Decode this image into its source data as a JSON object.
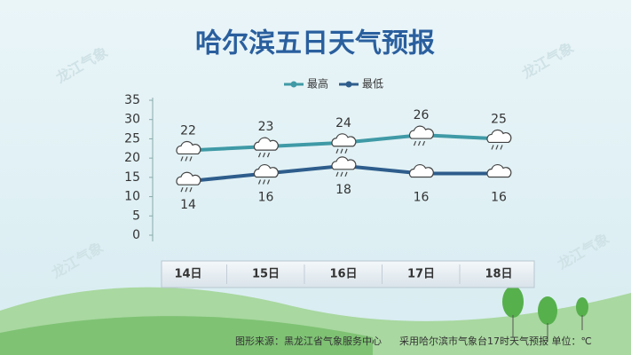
{
  "chart_data": {
    "type": "line",
    "title": "哈尔滨五日天气预报",
    "categories": [
      "14日",
      "15日",
      "16日",
      "17日",
      "18日"
    ],
    "series": [
      {
        "name": "最高",
        "color": "#3f9aa6",
        "values": [
          22,
          23,
          24,
          26,
          25
        ]
      },
      {
        "name": "最低",
        "color": "#2e5d8c",
        "values": [
          14,
          16,
          18,
          16,
          16
        ]
      }
    ],
    "ylim": [
      0,
      35
    ],
    "yticks": [
      0,
      5,
      10,
      15,
      20,
      25,
      30,
      35
    ],
    "legend": "top",
    "source": "图形来源：黑龙江省气象服务中心",
    "note": "采用哈尔滨市气象台17时天气预报 单位：℃",
    "watermark": "龙江气象"
  }
}
